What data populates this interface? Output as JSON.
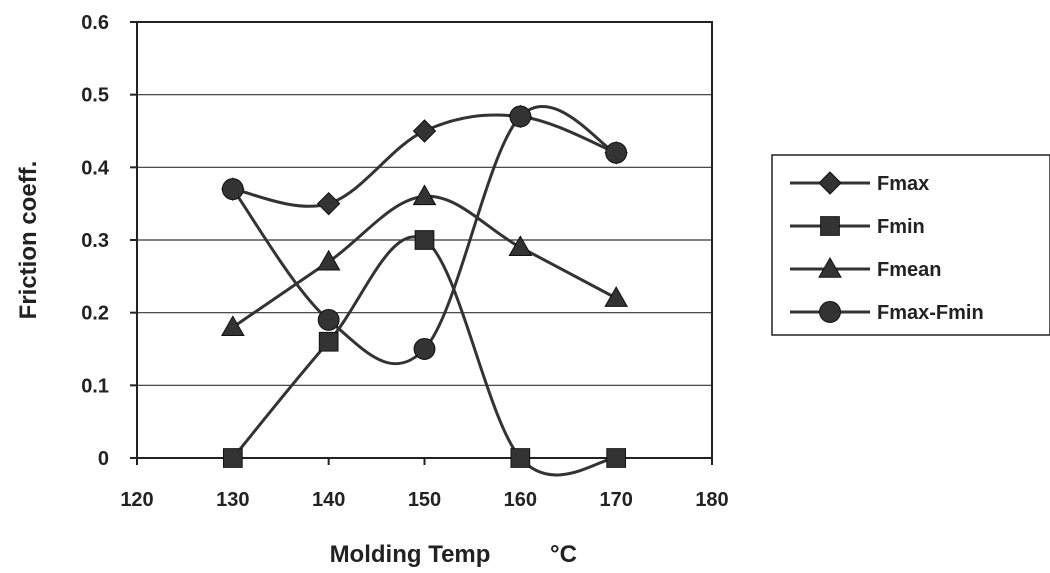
{
  "chart_data": {
    "type": "line",
    "xlabel": "Molding Temp",
    "xunit": "°C",
    "ylabel": "Friction coeff.",
    "xlim": [
      120,
      180
    ],
    "ylim": [
      0,
      0.6
    ],
    "xticks": [
      "120",
      "130",
      "140",
      "150",
      "160",
      "170",
      "180"
    ],
    "yticks": [
      "0",
      "0.1",
      "0.2",
      "0.3",
      "0.4",
      "0.5",
      "0.6"
    ],
    "grid": true,
    "legend_position": "right",
    "smooth": true,
    "x": [
      130,
      140,
      150,
      160,
      170
    ],
    "series": [
      {
        "name": "Fmax",
        "marker": "diamond",
        "values": [
          0.37,
          0.35,
          0.45,
          0.47,
          0.42
        ]
      },
      {
        "name": "Fmin",
        "marker": "square",
        "values": [
          0.0,
          0.16,
          0.3,
          0.0,
          0.0
        ]
      },
      {
        "name": "Fmean",
        "marker": "triangle",
        "values": [
          0.18,
          0.27,
          0.36,
          0.29,
          0.22
        ]
      },
      {
        "name": "Fmax-Fmin",
        "marker": "circle",
        "values": [
          0.37,
          0.19,
          0.15,
          0.47,
          0.42
        ]
      }
    ],
    "line_color": "#333333",
    "background": "#ffffff"
  }
}
